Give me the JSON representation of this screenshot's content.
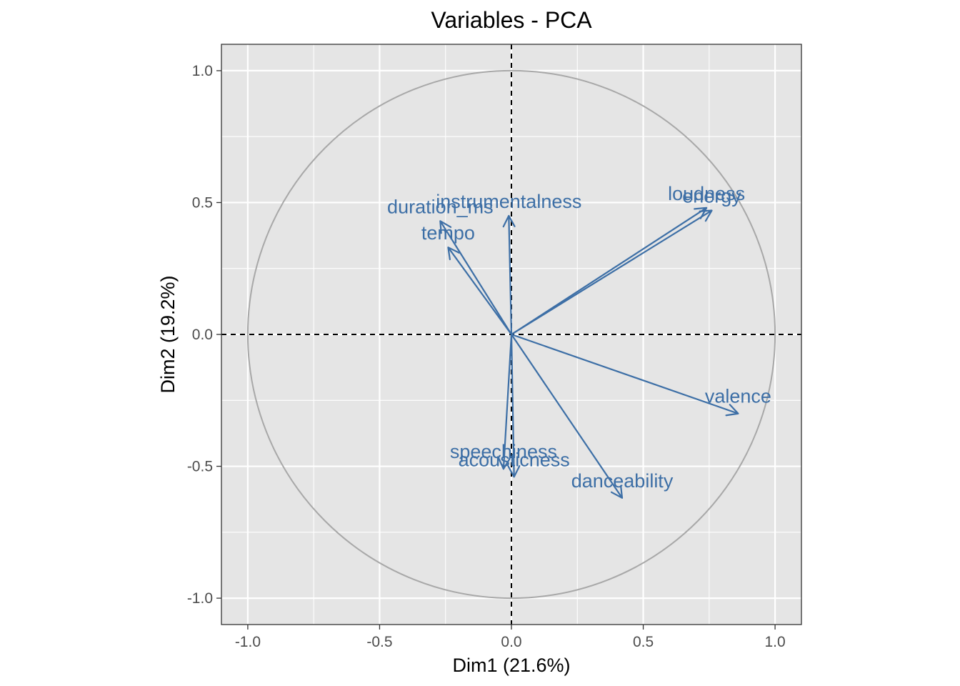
{
  "chart_data": {
    "type": "scatter",
    "title": "Variables - PCA",
    "xlabel": "Dim1 (21.6%)",
    "ylabel": "Dim2 (19.2%)",
    "xlim": [
      -1.1,
      1.1
    ],
    "ylim": [
      -1.1,
      1.1
    ],
    "xticks": [
      "-1.0",
      "-0.5",
      "0.0",
      "0.5",
      "1.0"
    ],
    "yticks": [
      "-1.0",
      "-0.5",
      "0.0",
      "0.5",
      "1.0"
    ],
    "grid": true,
    "correlation_circle": true,
    "colors": {
      "arrow": "#3d6fa6",
      "panel": "#e5e5e5",
      "grid": "#ffffff",
      "circle": "#a8a8a8"
    },
    "variables": [
      {
        "name": "loudness",
        "x": 0.74,
        "y": 0.48
      },
      {
        "name": "energy",
        "x": 0.76,
        "y": 0.47
      },
      {
        "name": "instrumentalness",
        "x": -0.01,
        "y": 0.45
      },
      {
        "name": "duration_ms",
        "x": -0.27,
        "y": 0.43
      },
      {
        "name": "tempo",
        "x": -0.24,
        "y": 0.33
      },
      {
        "name": "valence",
        "x": 0.86,
        "y": -0.3
      },
      {
        "name": "speechiness",
        "x": -0.03,
        "y": -0.51
      },
      {
        "name": "acousticness",
        "x": 0.01,
        "y": -0.54
      },
      {
        "name": "danceability",
        "x": 0.42,
        "y": -0.62
      }
    ]
  }
}
